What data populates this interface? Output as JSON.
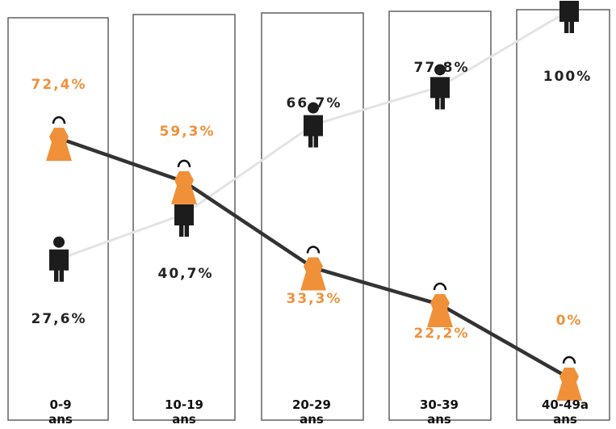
{
  "chart_data": {
    "type": "line",
    "categories": [
      {
        "range": "0-9",
        "unit": "ans"
      },
      {
        "range": "10-19",
        "unit": "ans"
      },
      {
        "range": "20-29",
        "unit": "ans"
      },
      {
        "range": "30-39",
        "unit": "ans"
      },
      {
        "range": "40-49a",
        "unit": "ans"
      }
    ],
    "series": [
      {
        "key": "female",
        "icon": "female-person-icon",
        "line_color": "#333333",
        "text_color": "#f0913a",
        "values": [
          72.4,
          59.3,
          33.3,
          22.2,
          0
        ],
        "labels": [
          "72,4%",
          "59,3%",
          "33,3%",
          "22,2%",
          "0%"
        ]
      },
      {
        "key": "male",
        "icon": "male-person-icon",
        "line_color": "#e3e3e3",
        "text_color": "#222222",
        "values": [
          27.6,
          40.7,
          66.7,
          77.8,
          100
        ],
        "labels": [
          "27,6%",
          "40,7%",
          "66,7%",
          "77,8%",
          "100%"
        ]
      }
    ],
    "ylim": [
      0,
      100
    ],
    "grid": false,
    "legend": "none"
  }
}
